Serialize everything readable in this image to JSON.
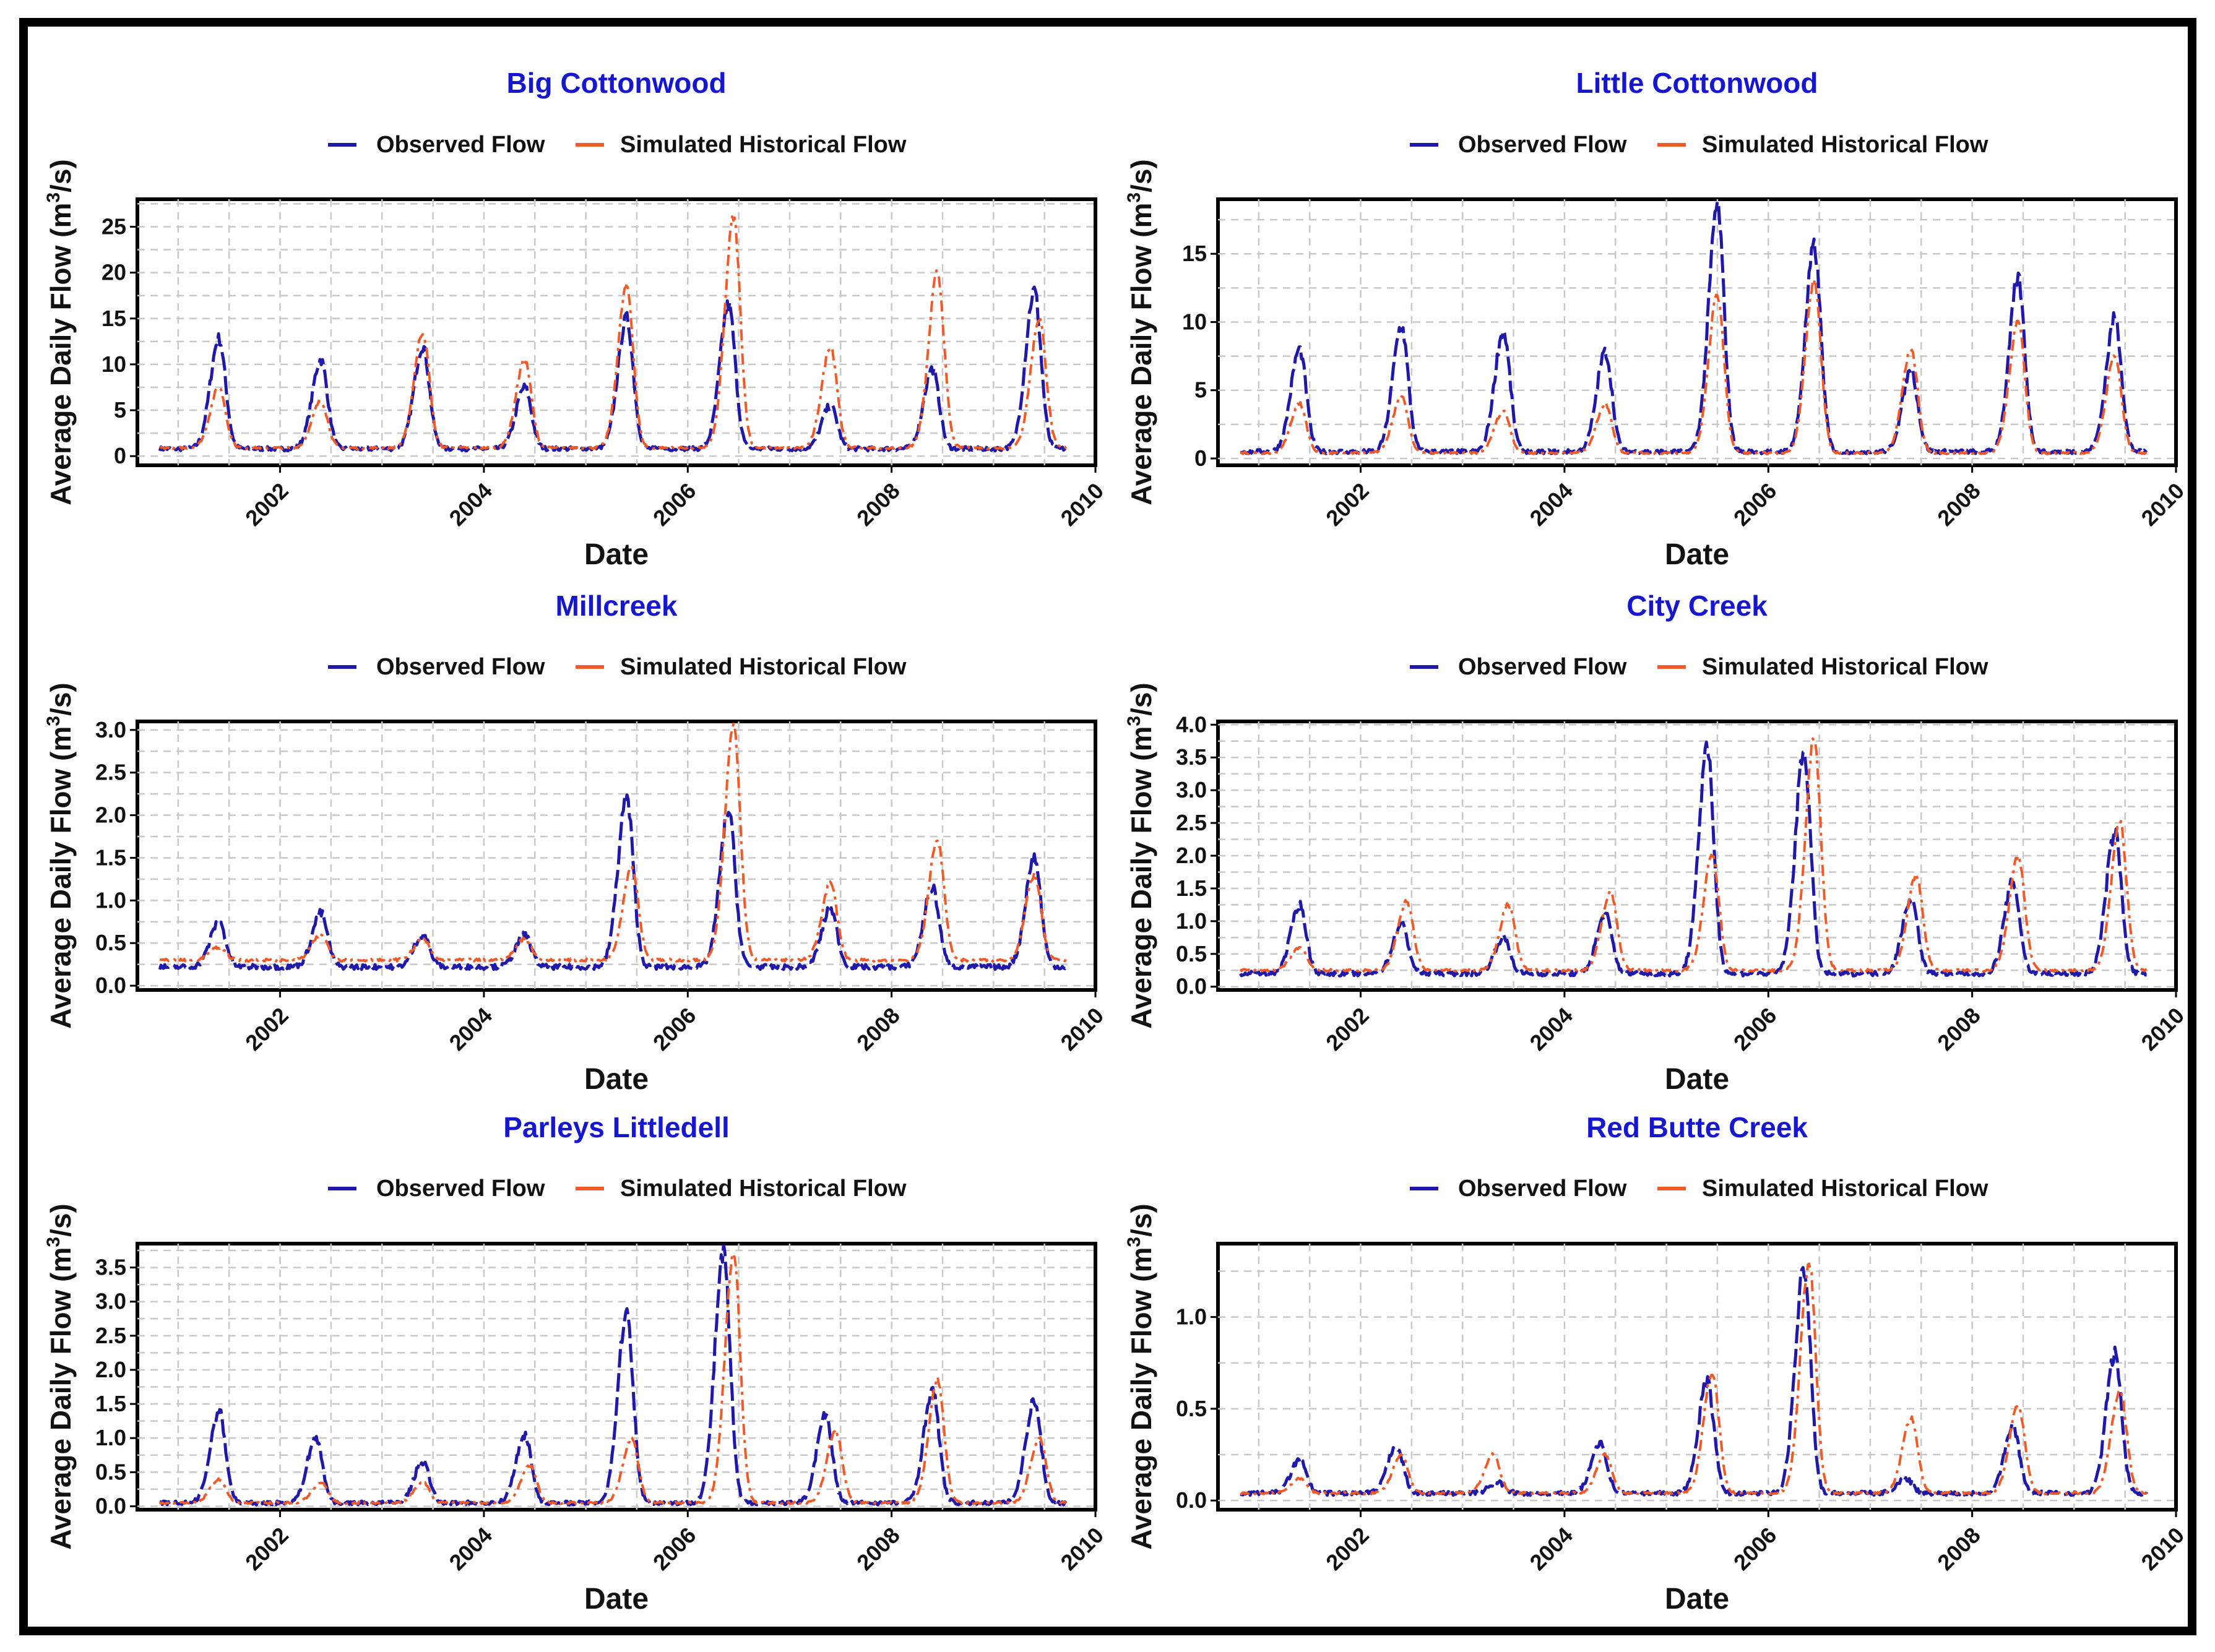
{
  "figure": {
    "xlabel": "Date",
    "ylabel": "Average Daily Flow (m",
    "ylabel_sup": "3",
    "ylabel_end": "/s)",
    "legend": {
      "observed": "Observed Flow",
      "simulated": "Simulated Historical Flow"
    },
    "colors": {
      "observed": "#1f18a8",
      "simulated": "#f05a28",
      "title": "#1616d0",
      "grid": "#c8c8c8"
    }
  },
  "chart_data": [
    {
      "type": "line",
      "title": "Big Cottonwood",
      "xlim": [
        2000.6,
        2010.0
      ],
      "xticks": [
        2002,
        2004,
        2006,
        2008,
        2010
      ],
      "ylim": [
        -1,
        28
      ],
      "yticks": [
        0,
        5,
        10,
        15,
        20,
        25
      ],
      "series": [
        {
          "name": "Observed Flow",
          "baseline": 0.8,
          "peaks": [
            [
              2001.4,
              12.8
            ],
            [
              2002.4,
              10.5
            ],
            [
              2003.4,
              12
            ],
            [
              2004.4,
              7.5
            ],
            [
              2005.4,
              15
            ],
            [
              2006.4,
              16.5
            ],
            [
              2007.4,
              5.5
            ],
            [
              2008.4,
              9.5
            ],
            [
              2009.4,
              18
            ]
          ]
        },
        {
          "name": "Simulated Historical Flow",
          "baseline": 0.9,
          "peaks": [
            [
              2001.4,
              7.5
            ],
            [
              2002.4,
              6
            ],
            [
              2003.4,
              13.5
            ],
            [
              2004.4,
              10.5
            ],
            [
              2005.4,
              18.5
            ],
            [
              2006.45,
              26
            ],
            [
              2007.4,
              12
            ],
            [
              2008.45,
              20
            ],
            [
              2009.45,
              15
            ]
          ]
        }
      ]
    },
    {
      "type": "line",
      "title": "Little Cottonwood",
      "xlim": [
        2000.6,
        2010.0
      ],
      "xticks": [
        2002,
        2004,
        2006,
        2008,
        2010
      ],
      "ylim": [
        -0.5,
        19
      ],
      "yticks": [
        0,
        5,
        10,
        15
      ],
      "series": [
        {
          "name": "Observed Flow",
          "baseline": 0.5,
          "peaks": [
            [
              2001.4,
              8
            ],
            [
              2002.4,
              9.7
            ],
            [
              2003.4,
              9.3
            ],
            [
              2004.4,
              7.8
            ],
            [
              2005.5,
              18.5
            ],
            [
              2006.45,
              15.5
            ],
            [
              2007.4,
              6.5
            ],
            [
              2008.45,
              13.2
            ],
            [
              2009.4,
              10.3
            ]
          ]
        },
        {
          "name": "Simulated Historical Flow",
          "baseline": 0.4,
          "peaks": [
            [
              2001.4,
              4
            ],
            [
              2002.4,
              4.5
            ],
            [
              2003.4,
              3.5
            ],
            [
              2004.4,
              4
            ],
            [
              2005.5,
              12
            ],
            [
              2006.45,
              13
            ],
            [
              2007.4,
              8
            ],
            [
              2008.45,
              10
            ],
            [
              2009.4,
              7.5
            ]
          ]
        }
      ]
    },
    {
      "type": "line",
      "title": "Millcreek",
      "xlim": [
        2000.6,
        2010.0
      ],
      "xticks": [
        2002,
        2004,
        2006,
        2008,
        2010
      ],
      "ylim": [
        -0.05,
        3.1
      ],
      "yticks": [
        "0.0",
        "0.5",
        "1.0",
        "1.5",
        "2.0",
        "2.5",
        "3.0"
      ],
      "series": [
        {
          "name": "Observed Flow",
          "baseline": 0.22,
          "peaks": [
            [
              2001.4,
              0.75
            ],
            [
              2002.4,
              0.85
            ],
            [
              2003.4,
              0.6
            ],
            [
              2004.4,
              0.6
            ],
            [
              2005.4,
              2.2
            ],
            [
              2006.4,
              2.05
            ],
            [
              2007.4,
              0.9
            ],
            [
              2008.4,
              1.15
            ],
            [
              2009.4,
              1.5
            ]
          ]
        },
        {
          "name": "Simulated Historical Flow",
          "baseline": 0.3,
          "peaks": [
            [
              2001.4,
              0.45
            ],
            [
              2002.4,
              0.6
            ],
            [
              2003.4,
              0.55
            ],
            [
              2004.4,
              0.55
            ],
            [
              2005.45,
              1.4
            ],
            [
              2006.45,
              3.05
            ],
            [
              2007.4,
              1.2
            ],
            [
              2008.45,
              1.7
            ],
            [
              2009.4,
              1.3
            ]
          ]
        }
      ]
    },
    {
      "type": "line",
      "title": "City Creek",
      "xlim": [
        2000.6,
        2010.0
      ],
      "xticks": [
        2002,
        2004,
        2006,
        2008,
        2010
      ],
      "ylim": [
        -0.05,
        4.05
      ],
      "yticks": [
        "0.0",
        "0.5",
        "1.0",
        "1.5",
        "2.0",
        "2.5",
        "3.0",
        "3.5",
        "4.0"
      ],
      "series": [
        {
          "name": "Observed Flow",
          "baseline": 0.2,
          "peaks": [
            [
              2001.4,
              1.25
            ],
            [
              2002.4,
              0.95
            ],
            [
              2003.4,
              0.75
            ],
            [
              2004.4,
              1.1
            ],
            [
              2005.4,
              3.6
            ],
            [
              2006.35,
              3.6
            ],
            [
              2007.4,
              1.35
            ],
            [
              2008.4,
              1.6
            ],
            [
              2009.4,
              2.35
            ]
          ]
        },
        {
          "name": "Simulated Historical Flow",
          "baseline": 0.25,
          "peaks": [
            [
              2001.4,
              0.6
            ],
            [
              2002.45,
              1.3
            ],
            [
              2003.45,
              1.25
            ],
            [
              2004.45,
              1.45
            ],
            [
              2005.45,
              2.0
            ],
            [
              2006.45,
              3.8
            ],
            [
              2007.45,
              1.7
            ],
            [
              2008.45,
              2.0
            ],
            [
              2009.45,
              2.5
            ]
          ]
        }
      ]
    },
    {
      "type": "line",
      "title": "Parleys Littledell",
      "xlim": [
        2000.6,
        2010.0
      ],
      "xticks": [
        2002,
        2004,
        2006,
        2008,
        2010
      ],
      "ylim": [
        -0.05,
        3.85
      ],
      "yticks": [
        "0.0",
        "0.5",
        "1.0",
        "1.5",
        "2.0",
        "2.5",
        "3.0",
        "3.5"
      ],
      "series": [
        {
          "name": "Observed Flow",
          "baseline": 0.05,
          "peaks": [
            [
              2001.4,
              1.4
            ],
            [
              2002.35,
              1.0
            ],
            [
              2003.4,
              0.65
            ],
            [
              2004.4,
              1.05
            ],
            [
              2005.4,
              2.85
            ],
            [
              2006.35,
              3.7
            ],
            [
              2007.35,
              1.35
            ],
            [
              2008.4,
              1.7
            ],
            [
              2009.4,
              1.55
            ]
          ]
        },
        {
          "name": "Simulated Historical Flow",
          "baseline": 0.05,
          "peaks": [
            [
              2001.4,
              0.4
            ],
            [
              2002.4,
              0.35
            ],
            [
              2003.4,
              0.35
            ],
            [
              2004.45,
              0.6
            ],
            [
              2005.45,
              1.0
            ],
            [
              2006.45,
              3.7
            ],
            [
              2007.45,
              1.1
            ],
            [
              2008.45,
              1.85
            ],
            [
              2009.45,
              1.0
            ]
          ]
        }
      ]
    },
    {
      "type": "line",
      "title": "Red Butte Creek",
      "xlim": [
        2000.6,
        2010.0
      ],
      "xticks": [
        2002,
        2004,
        2006,
        2008,
        2010
      ],
      "ylim": [
        -0.05,
        1.4
      ],
      "yticks": [
        "0.0",
        "0.5",
        "1.0"
      ],
      "series": [
        {
          "name": "Observed Flow",
          "baseline": 0.04,
          "peaks": [
            [
              2001.4,
              0.22
            ],
            [
              2002.35,
              0.3
            ],
            [
              2003.35,
              0.1
            ],
            [
              2004.35,
              0.32
            ],
            [
              2005.4,
              0.65
            ],
            [
              2006.35,
              1.28
            ],
            [
              2007.35,
              0.12
            ],
            [
              2008.4,
              0.4
            ],
            [
              2009.4,
              0.8
            ]
          ]
        },
        {
          "name": "Simulated Historical Flow",
          "baseline": 0.04,
          "peaks": [
            [
              2001.4,
              0.12
            ],
            [
              2002.4,
              0.25
            ],
            [
              2003.3,
              0.25
            ],
            [
              2004.4,
              0.25
            ],
            [
              2005.45,
              0.7
            ],
            [
              2006.4,
              1.3
            ],
            [
              2007.4,
              0.45
            ],
            [
              2008.45,
              0.52
            ],
            [
              2009.45,
              0.6
            ]
          ]
        }
      ]
    }
  ]
}
